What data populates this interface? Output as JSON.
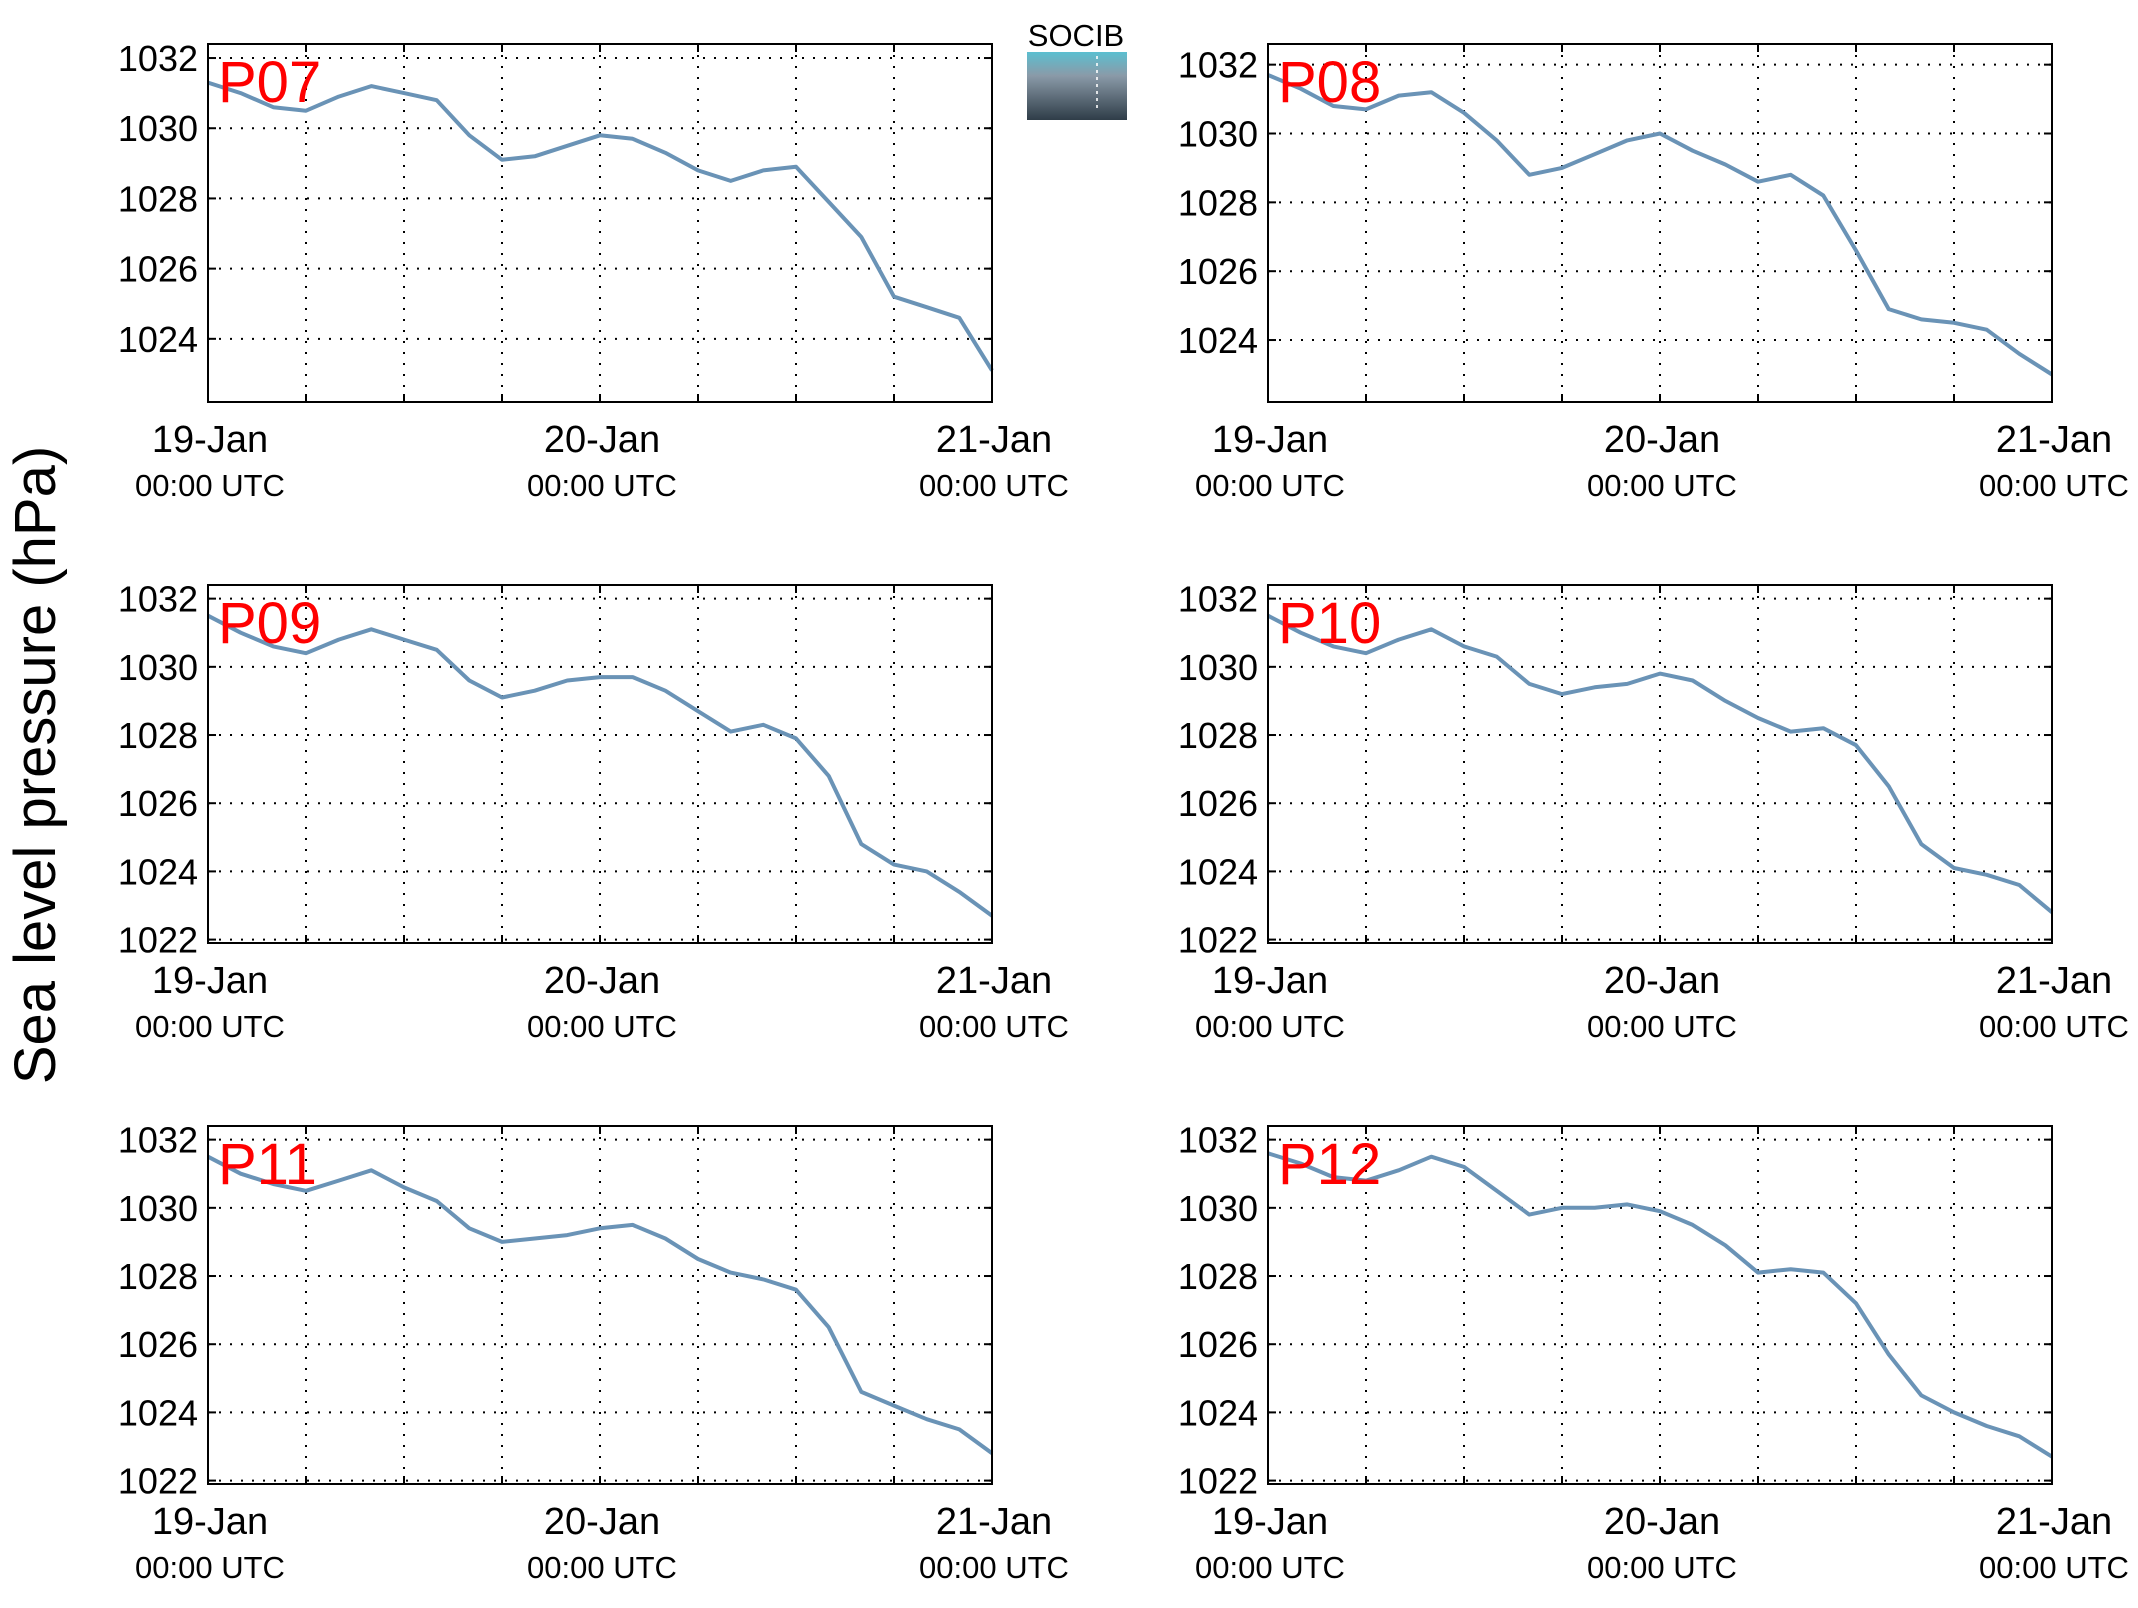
{
  "figure": {
    "ylabel": "Sea level pressure (hPa)",
    "logo_text": "SOCIB",
    "line_color": "#6a93b6",
    "label_color": "#ff0000",
    "logo_color": "#5bbfd0"
  },
  "chart_data": [
    {
      "type": "line",
      "panel_label": "P07",
      "x_ticks": [
        {
          "date": "19-Jan",
          "time": "00:00 UTC"
        },
        {
          "date": "20-Jan",
          "time": "00:00 UTC"
        },
        {
          "date": "21-Jan",
          "time": "00:00 UTC"
        }
      ],
      "xlim": [
        "19-Jan 00:00",
        "21-Jan 00:00"
      ],
      "y_ticks": [
        "1024",
        "1026",
        "1028",
        "1030",
        "1032"
      ],
      "ylim": [
        1022.2,
        1032.4
      ],
      "grid": true,
      "x_hours": [
        0,
        2,
        4,
        6,
        8,
        10,
        12,
        14,
        16,
        18,
        20,
        22,
        24,
        26,
        28,
        30,
        32,
        34,
        36,
        38,
        40,
        42,
        44,
        46,
        48
      ],
      "values": [
        1031.3,
        1031.0,
        1030.6,
        1030.5,
        1030.9,
        1031.2,
        1031.0,
        1030.8,
        1029.8,
        1029.1,
        1029.2,
        1029.5,
        1029.8,
        1029.7,
        1029.3,
        1028.8,
        1028.5,
        1028.8,
        1028.9,
        1027.9,
        1026.9,
        1025.2,
        1024.9,
        1024.6,
        1023.1
      ]
    },
    {
      "type": "line",
      "panel_label": "P08",
      "x_ticks": [
        {
          "date": "19-Jan",
          "time": "00:00 UTC"
        },
        {
          "date": "20-Jan",
          "time": "00:00 UTC"
        },
        {
          "date": "21-Jan",
          "time": "00:00 UTC"
        }
      ],
      "xlim": [
        "19-Jan 00:00",
        "21-Jan 00:00"
      ],
      "y_ticks": [
        "1024",
        "1026",
        "1028",
        "1030",
        "1032"
      ],
      "ylim": [
        1022.2,
        1032.6
      ],
      "grid": true,
      "x_hours": [
        0,
        2,
        4,
        6,
        8,
        10,
        12,
        14,
        16,
        18,
        20,
        22,
        24,
        26,
        28,
        30,
        32,
        34,
        36,
        38,
        40,
        42,
        44,
        46,
        48
      ],
      "values": [
        1031.7,
        1031.3,
        1030.8,
        1030.7,
        1031.1,
        1031.2,
        1030.6,
        1029.8,
        1028.8,
        1029.0,
        1029.4,
        1029.8,
        1030.0,
        1029.5,
        1029.1,
        1028.6,
        1028.8,
        1028.2,
        1026.6,
        1024.9,
        1024.6,
        1024.5,
        1024.3,
        1023.6,
        1023.0
      ]
    },
    {
      "type": "line",
      "panel_label": "P09",
      "x_ticks": [
        {
          "date": "19-Jan",
          "time": "00:00 UTC"
        },
        {
          "date": "20-Jan",
          "time": "00:00 UTC"
        },
        {
          "date": "21-Jan",
          "time": "00:00 UTC"
        }
      ],
      "xlim": [
        "19-Jan 00:00",
        "21-Jan 00:00"
      ],
      "y_ticks": [
        "1022",
        "1024",
        "1026",
        "1028",
        "1030",
        "1032"
      ],
      "ylim": [
        1021.9,
        1032.4
      ],
      "grid": true,
      "x_hours": [
        0,
        2,
        4,
        6,
        8,
        10,
        12,
        14,
        16,
        18,
        20,
        22,
        24,
        26,
        28,
        30,
        32,
        34,
        36,
        38,
        40,
        42,
        44,
        46,
        48
      ],
      "values": [
        1031.5,
        1031.0,
        1030.6,
        1030.4,
        1030.8,
        1031.1,
        1030.8,
        1030.5,
        1029.6,
        1029.1,
        1029.3,
        1029.6,
        1029.7,
        1029.7,
        1029.3,
        1028.7,
        1028.1,
        1028.3,
        1027.9,
        1026.8,
        1024.8,
        1024.2,
        1024.0,
        1023.4,
        1022.7
      ]
    },
    {
      "type": "line",
      "panel_label": "P10",
      "x_ticks": [
        {
          "date": "19-Jan",
          "time": "00:00 UTC"
        },
        {
          "date": "20-Jan",
          "time": "00:00 UTC"
        },
        {
          "date": "21-Jan",
          "time": "00:00 UTC"
        }
      ],
      "xlim": [
        "19-Jan 00:00",
        "21-Jan 00:00"
      ],
      "y_ticks": [
        "1022",
        "1024",
        "1026",
        "1028",
        "1030",
        "1032"
      ],
      "ylim": [
        1021.9,
        1032.4
      ],
      "grid": true,
      "x_hours": [
        0,
        2,
        4,
        6,
        8,
        10,
        12,
        14,
        16,
        18,
        20,
        22,
        24,
        26,
        28,
        30,
        32,
        34,
        36,
        38,
        40,
        42,
        44,
        46,
        48
      ],
      "values": [
        1031.5,
        1031.0,
        1030.6,
        1030.4,
        1030.8,
        1031.1,
        1030.6,
        1030.3,
        1029.5,
        1029.2,
        1029.4,
        1029.5,
        1029.8,
        1029.6,
        1029.0,
        1028.5,
        1028.1,
        1028.2,
        1027.7,
        1026.5,
        1024.8,
        1024.1,
        1023.9,
        1023.6,
        1022.8
      ]
    },
    {
      "type": "line",
      "panel_label": "P11",
      "x_ticks": [
        {
          "date": "19-Jan",
          "time": "00:00 UTC"
        },
        {
          "date": "20-Jan",
          "time": "00:00 UTC"
        },
        {
          "date": "21-Jan",
          "time": "00:00 UTC"
        }
      ],
      "xlim": [
        "19-Jan 00:00",
        "21-Jan 00:00"
      ],
      "y_ticks": [
        "1022",
        "1024",
        "1026",
        "1028",
        "1030",
        "1032"
      ],
      "ylim": [
        1021.9,
        1032.4
      ],
      "grid": true,
      "x_hours": [
        0,
        2,
        4,
        6,
        8,
        10,
        12,
        14,
        16,
        18,
        20,
        22,
        24,
        26,
        28,
        30,
        32,
        34,
        36,
        38,
        40,
        42,
        44,
        46,
        48
      ],
      "values": [
        1031.5,
        1031.0,
        1030.7,
        1030.5,
        1030.8,
        1031.1,
        1030.6,
        1030.2,
        1029.4,
        1029.0,
        1029.1,
        1029.2,
        1029.4,
        1029.5,
        1029.1,
        1028.5,
        1028.1,
        1027.9,
        1027.6,
        1026.5,
        1024.6,
        1024.2,
        1023.8,
        1023.5,
        1022.8
      ]
    },
    {
      "type": "line",
      "panel_label": "P12",
      "x_ticks": [
        {
          "date": "19-Jan",
          "time": "00:00 UTC"
        },
        {
          "date": "20-Jan",
          "time": "00:00 UTC"
        },
        {
          "date": "21-Jan",
          "time": "00:00 UTC"
        }
      ],
      "xlim": [
        "19-Jan 00:00",
        "21-Jan 00:00"
      ],
      "y_ticks": [
        "1022",
        "1024",
        "1026",
        "1028",
        "1030",
        "1032"
      ],
      "ylim": [
        1021.9,
        1032.4
      ],
      "grid": true,
      "x_hours": [
        0,
        2,
        4,
        6,
        8,
        10,
        12,
        14,
        16,
        18,
        20,
        22,
        24,
        26,
        28,
        30,
        32,
        34,
        36,
        38,
        40,
        42,
        44,
        46,
        48
      ],
      "values": [
        1031.6,
        1031.3,
        1030.9,
        1030.8,
        1031.1,
        1031.5,
        1031.2,
        1030.5,
        1029.8,
        1030.0,
        1030.0,
        1030.1,
        1029.9,
        1029.5,
        1028.9,
        1028.1,
        1028.2,
        1028.1,
        1027.2,
        1025.7,
        1024.5,
        1024.0,
        1023.6,
        1023.3,
        1022.7
      ]
    }
  ]
}
